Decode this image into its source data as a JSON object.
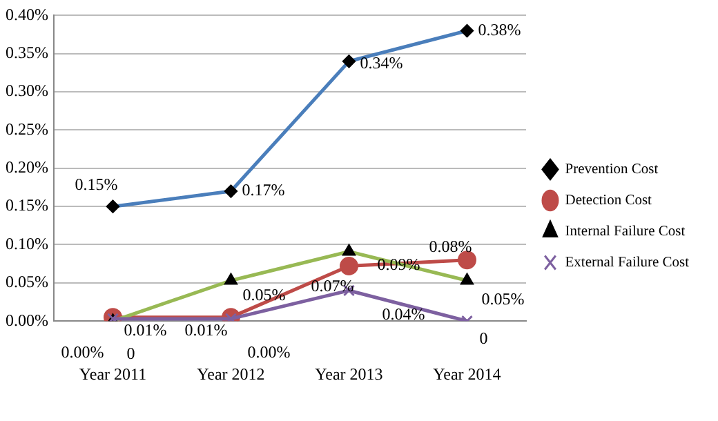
{
  "chart_data": {
    "type": "line",
    "categories": [
      "Year 2011",
      "Year 2012",
      "Year 2013",
      "Year 2014"
    ],
    "series": [
      {
        "name": "Prevention Cost",
        "color": "#4a7ebb",
        "marker": "diamond",
        "values": [
          0.15,
          0.17,
          0.34,
          0.38
        ],
        "value_labels": [
          "0.15%",
          "0.17%",
          "0.34%",
          "0.38%"
        ]
      },
      {
        "name": "Detection Cost",
        "color": "#be4b48",
        "marker": "circle",
        "values": [
          0.005,
          0.005,
          0.072,
          0.08
        ],
        "value_labels": [
          "0.01%",
          "0.01%",
          "0.07%",
          "0.08%"
        ]
      },
      {
        "name": "Internal Failure Cost",
        "color": "#98b954",
        "marker": "triangle",
        "values": [
          0,
          0.053,
          0.091,
          0.053
        ],
        "value_labels": [
          "0",
          "0.05%",
          "0.09%",
          "0.05%"
        ]
      },
      {
        "name": "External Failure Cost",
        "color": "#7d60a0",
        "marker": "cross",
        "values": [
          0.003,
          0.003,
          0.04,
          0
        ],
        "value_labels": [
          "0.00%",
          "0.00%",
          "0.04%",
          "0"
        ]
      }
    ],
    "ylim": [
      0,
      0.4
    ],
    "yticks": [
      {
        "value": 0,
        "label": "0.00%"
      },
      {
        "value": 0.05,
        "label": "0.05%"
      },
      {
        "value": 0.1,
        "label": "0.10%"
      },
      {
        "value": 0.15,
        "label": "0.15%"
      },
      {
        "value": 0.2,
        "label": "0.20%"
      },
      {
        "value": 0.25,
        "label": "0.25%"
      },
      {
        "value": 0.3,
        "label": "0.30%"
      },
      {
        "value": 0.35,
        "label": "0.35%"
      },
      {
        "value": 0.4,
        "label": "0.40%"
      }
    ],
    "grid": "y",
    "legend": "right",
    "line_style": "solid"
  }
}
